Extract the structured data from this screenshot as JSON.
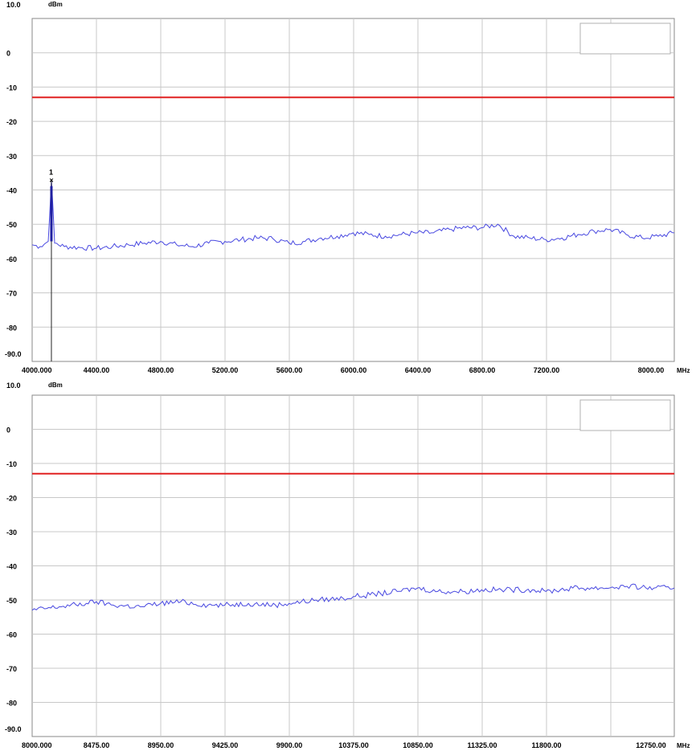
{
  "chart_data": [
    {
      "type": "line",
      "y_unit": "dBm",
      "x_unit": "MHz",
      "ylim": [
        -90,
        10
      ],
      "xlim": [
        4000,
        8000
      ],
      "y_top_label": "10.0",
      "y_bottom_label": "-90.0",
      "y_tick_labels": [
        "0",
        "-10",
        "-20",
        "-30",
        "-40",
        "-50",
        "-60",
        "-70",
        "-80"
      ],
      "x_tick_labels": [
        "4000.000",
        "4400.00",
        "4800.00",
        "5200.00",
        "5600.00",
        "6000.00",
        "6400.00",
        "6800.00",
        "7200.00",
        "8000.00"
      ],
      "grid": true,
      "legend_box": "top-right",
      "limit_line": {
        "value": -13,
        "color": "#e02020"
      },
      "trace_color": "#4848e0",
      "marker": {
        "label": "1",
        "x": 4120,
        "y": -37
      },
      "series": [
        {
          "x": [
            4000,
            4050,
            4100,
            4120,
            4140,
            4200,
            4300,
            4400,
            4500,
            4600,
            4700,
            4800,
            4900,
            5000,
            5100,
            5200,
            5300,
            5400,
            5500,
            5600,
            5700,
            5800,
            5900,
            6000,
            6100,
            6200,
            6300,
            6400,
            6500,
            6600,
            6700,
            6800,
            6900,
            7000,
            7100,
            7200,
            7300,
            7400,
            7500,
            7600,
            7700,
            7800,
            7900,
            8000
          ],
          "y": [
            -56,
            -56.5,
            -55,
            -37,
            -55.5,
            -56.5,
            -56.8,
            -57,
            -56.5,
            -56,
            -55.5,
            -55,
            -56,
            -56.5,
            -55.5,
            -55,
            -54.5,
            -54,
            -54.2,
            -55.5,
            -55,
            -54,
            -53.5,
            -52.5,
            -53,
            -53.5,
            -53,
            -52.5,
            -52.5,
            -51.5,
            -51,
            -51,
            -50,
            -53.5,
            -54,
            -54.5,
            -54,
            -53,
            -52,
            -51.5,
            -53,
            -54,
            -53.5,
            -52.5
          ]
        }
      ]
    },
    {
      "type": "line",
      "y_unit": "dBm",
      "x_unit": "MHz",
      "ylim": [
        -90,
        10
      ],
      "xlim": [
        8000,
        12750
      ],
      "y_top_label": "10.0",
      "y_bottom_label": "-90.0",
      "y_tick_labels": [
        "0",
        "-10",
        "-20",
        "-30",
        "-40",
        "-50",
        "-60",
        "-70",
        "-80"
      ],
      "x_tick_labels": [
        "8000.000",
        "8475.00",
        "8950.00",
        "9425.00",
        "9900.00",
        "10375.00",
        "10850.00",
        "11325.00",
        "11800.00",
        "12750.00"
      ],
      "grid": true,
      "legend_box": "top-right",
      "limit_line": {
        "value": -13,
        "color": "#e02020"
      },
      "trace_color": "#4848e0",
      "series": [
        {
          "x": [
            8000,
            8200,
            8400,
            8475,
            8600,
            8800,
            8950,
            9100,
            9300,
            9425,
            9600,
            9800,
            9900,
            10100,
            10300,
            10375,
            10500,
            10700,
            10850,
            11000,
            11200,
            11325,
            11500,
            11700,
            11800,
            12000,
            12200,
            12400,
            12600,
            12750
          ],
          "y": [
            -53,
            -52,
            -51,
            -50.5,
            -51.5,
            -52,
            -51,
            -50.5,
            -51.5,
            -51.5,
            -51,
            -51.5,
            -51,
            -50,
            -49.5,
            -49,
            -48.5,
            -47.5,
            -46.5,
            -47.5,
            -47.5,
            -47,
            -47,
            -47,
            -47.5,
            -46.5,
            -46.5,
            -46,
            -46.5,
            -46.5
          ]
        }
      ]
    }
  ]
}
